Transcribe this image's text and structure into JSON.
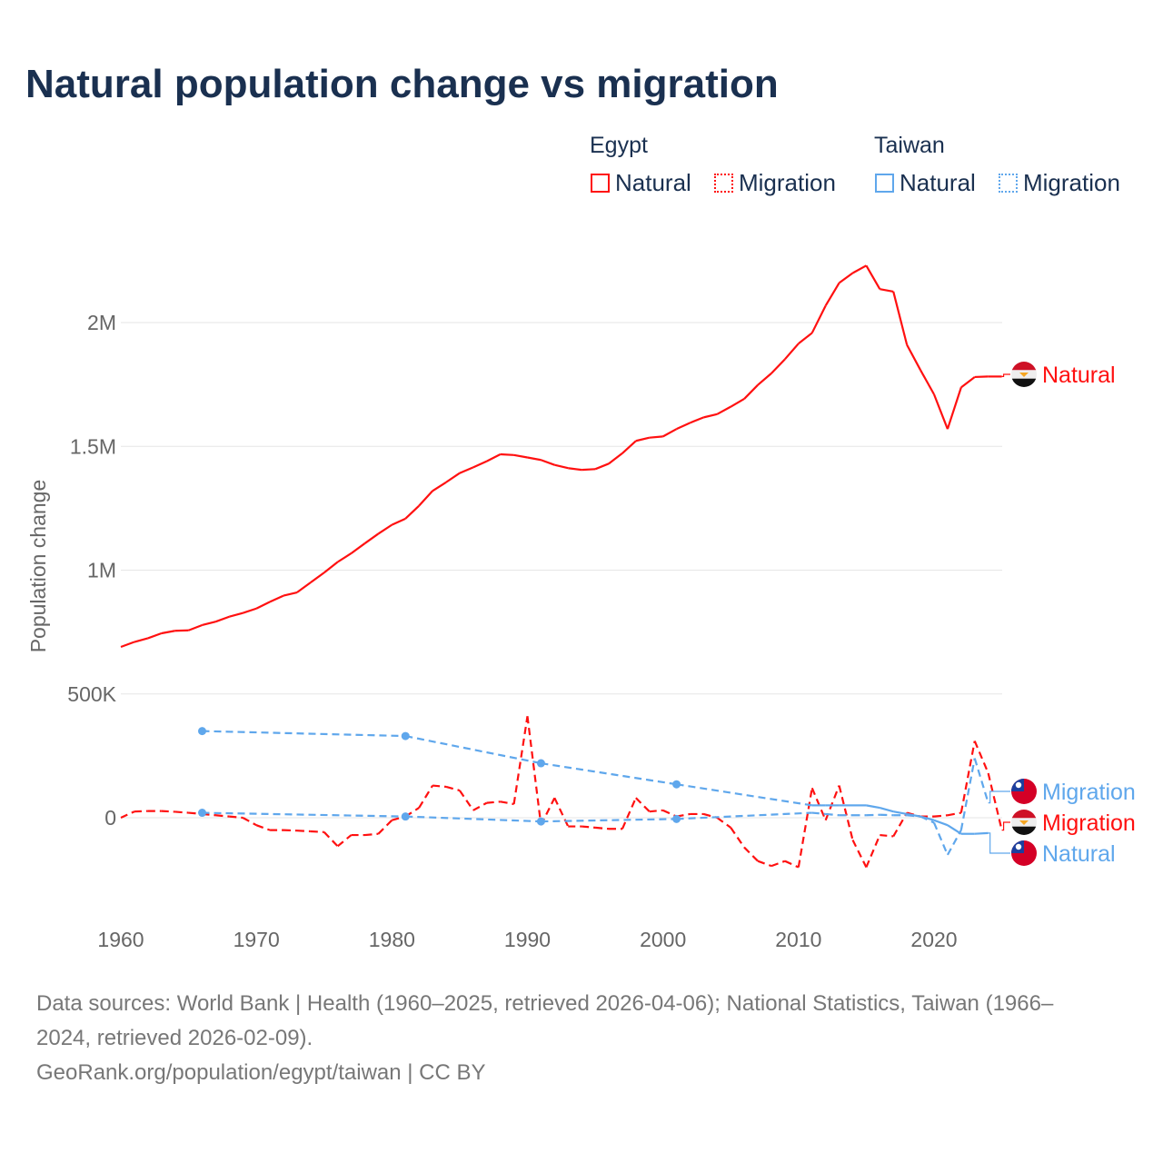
{
  "title": "Natural population change vs migration",
  "legend": {
    "groups": [
      {
        "country": "Egypt",
        "items": [
          "Natural",
          "Migration"
        ]
      },
      {
        "country": "Taiwan",
        "items": [
          "Natural",
          "Migration"
        ]
      }
    ]
  },
  "colors": {
    "egypt": "#ff1010",
    "taiwan": "#5fa7ec"
  },
  "footer": {
    "line1": "Data sources: World Bank | Health (1960–2025, retrieved 2026-04-06); National Statistics, Taiwan (1966–",
    "line2": "2024, retrieved 2026-02-09).",
    "line3": "GeoRank.org/population/egypt/taiwan | CC BY"
  },
  "chart_data": {
    "type": "line",
    "title": "Natural population change vs migration",
    "xlabel": "",
    "ylabel": "Population change",
    "unit": "thousands",
    "xlim": [
      1960,
      2025
    ],
    "ylim": [
      -300,
      2300
    ],
    "x_ticks": [
      "1960",
      "1970",
      "1980",
      "1990",
      "2000",
      "2010",
      "2020"
    ],
    "y_ticks": [
      {
        "value": 0,
        "label": "0"
      },
      {
        "value": 500,
        "label": "500K"
      },
      {
        "value": 1000,
        "label": "1M"
      },
      {
        "value": 1500,
        "label": "1.5M"
      },
      {
        "value": 2000,
        "label": "2M"
      }
    ],
    "grid": true,
    "series": [
      {
        "name": "Egypt Natural",
        "end_label": "Natural",
        "country": "egypt",
        "style": "solid",
        "x": [
          1960,
          1961,
          1962,
          1963,
          1964,
          1965,
          1966,
          1967,
          1968,
          1969,
          1970,
          1971,
          1972,
          1973,
          1974,
          1975,
          1976,
          1977,
          1978,
          1979,
          1980,
          1981,
          1982,
          1983,
          1984,
          1985,
          1986,
          1987,
          1988,
          1989,
          1990,
          1991,
          1992,
          1993,
          1994,
          1995,
          1996,
          1997,
          1998,
          1999,
          2000,
          2001,
          2002,
          2003,
          2004,
          2005,
          2006,
          2007,
          2008,
          2009,
          2010,
          2011,
          2012,
          2013,
          2014,
          2015,
          2016,
          2017,
          2018,
          2019,
          2020,
          2021,
          2022,
          2023,
          2024,
          2025
        ],
        "values": [
          690,
          710,
          725,
          745,
          755,
          757,
          778,
          792,
          812,
          827,
          845,
          872,
          897,
          910,
          950,
          990,
          1033,
          1068,
          1108,
          1147,
          1183,
          1208,
          1260,
          1320,
          1355,
          1392,
          1415,
          1440,
          1468,
          1465,
          1455,
          1445,
          1425,
          1412,
          1405,
          1408,
          1430,
          1472,
          1522,
          1535,
          1540,
          1570,
          1595,
          1617,
          1630,
          1660,
          1692,
          1748,
          1795,
          1852,
          1915,
          1958,
          2068,
          2160,
          2200,
          2230,
          2135,
          2125,
          1910,
          1808,
          1710,
          1570,
          1738,
          1780,
          1782,
          1782
        ]
      },
      {
        "name": "Egypt Migration",
        "end_label": "Migration",
        "country": "egypt",
        "style": "dashed",
        "x": [
          1960,
          1961,
          1962,
          1963,
          1964,
          1965,
          1966,
          1967,
          1968,
          1969,
          1970,
          1971,
          1972,
          1973,
          1974,
          1975,
          1976,
          1977,
          1978,
          1979,
          1980,
          1981,
          1982,
          1983,
          1984,
          1985,
          1986,
          1987,
          1988,
          1989,
          1990,
          1991,
          1992,
          1993,
          1994,
          1995,
          1996,
          1997,
          1998,
          1999,
          2000,
          2001,
          2002,
          2003,
          2004,
          2005,
          2006,
          2007,
          2008,
          2009,
          2010,
          2011,
          2012,
          2013,
          2014,
          2015,
          2016,
          2017,
          2018,
          2019,
          2020,
          2021,
          2022,
          2023,
          2024,
          2025
        ],
        "values": [
          0,
          25,
          27,
          27,
          24,
          20,
          15,
          10,
          5,
          0,
          -30,
          -50,
          -50,
          -52,
          -55,
          -58,
          -115,
          -70,
          -70,
          -65,
          -10,
          5,
          40,
          130,
          125,
          110,
          30,
          60,
          65,
          55,
          410,
          -30,
          80,
          -35,
          -35,
          -40,
          -45,
          -45,
          80,
          25,
          30,
          5,
          15,
          15,
          0,
          -40,
          -120,
          -175,
          -195,
          -175,
          -200,
          120,
          -10,
          130,
          -90,
          -200,
          -70,
          -75,
          20,
          5,
          5,
          10,
          20,
          310,
          180,
          -50
        ]
      },
      {
        "name": "Taiwan Natural",
        "end_label": "Natural",
        "country": "taiwan",
        "style": "solid",
        "x": [
          1966,
          1981,
          1991,
          2001,
          2011,
          2012,
          2013,
          2014,
          2015,
          2016,
          2017,
          2018,
          2019,
          2020,
          2021,
          2022,
          2023,
          2024
        ],
        "values": [
          350,
          330,
          220,
          135,
          50,
          50,
          50,
          50,
          50,
          40,
          25,
          15,
          5,
          -10,
          -30,
          -65,
          -65,
          -62
        ]
      },
      {
        "name": "Taiwan Migration",
        "end_label": "Migration",
        "country": "taiwan",
        "style": "dashed",
        "x": [
          1966,
          1981,
          1991,
          2001,
          2011,
          2012,
          2013,
          2014,
          2015,
          2016,
          2017,
          2018,
          2019,
          2020,
          2021,
          2022,
          2023,
          2024
        ],
        "values": [
          20,
          5,
          -15,
          -5,
          20,
          15,
          10,
          10,
          10,
          12,
          10,
          10,
          5,
          -20,
          -150,
          -50,
          240,
          60
        ]
      }
    ]
  }
}
